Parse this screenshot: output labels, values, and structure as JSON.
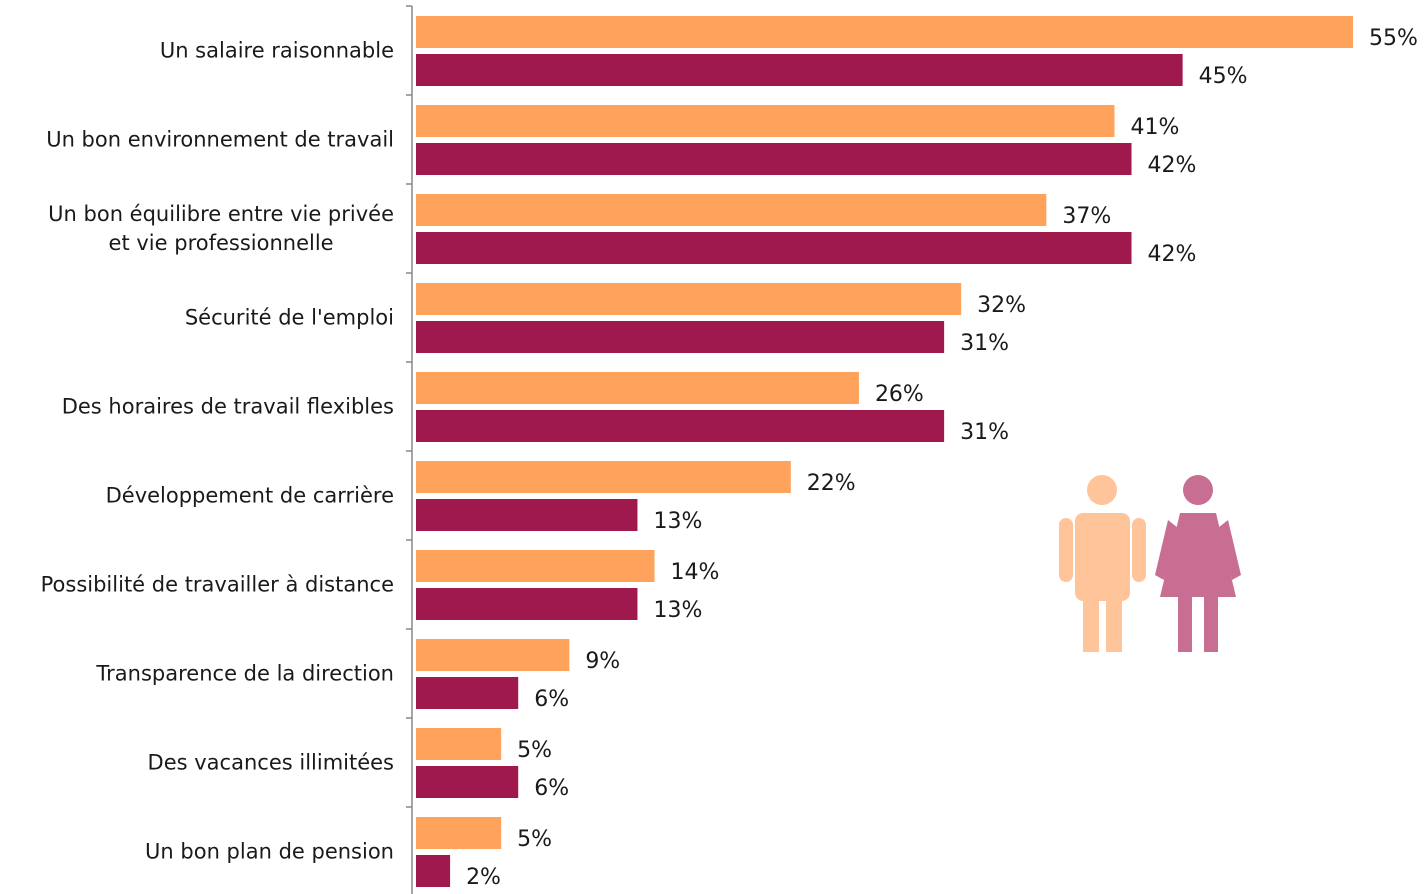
{
  "chart_data": {
    "type": "bar",
    "orientation": "horizontal",
    "categories": [
      "Un salaire raisonnable",
      "Un bon environnement de travail",
      "Un bon équilibre entre vie privée\net vie professionnelle",
      "Sécurité de l'emploi",
      "Des horaires de travail flexibles",
      "Développement de carrière",
      "Possibilité de travailler à distance",
      "Transparence de la direction",
      "Des vacances illimitées",
      "Un bon plan de pension"
    ],
    "series": [
      {
        "color": "#FFA35C",
        "values": [
          55,
          41,
          37,
          32,
          26,
          22,
          14,
          9,
          5,
          5
        ],
        "value_labels": [
          "55%",
          "41%",
          "37%",
          "32%",
          "26%",
          "22%",
          "14%",
          "9%",
          "5%",
          "5%"
        ]
      },
      {
        "color": "#A0194E",
        "values": [
          45,
          42,
          42,
          31,
          31,
          13,
          13,
          6,
          6,
          2
        ],
        "value_labels": [
          "45%",
          "42%",
          "42%",
          "31%",
          "31%",
          "13%",
          "13%",
          "6%",
          "6%",
          "2%"
        ]
      }
    ]
  }
}
